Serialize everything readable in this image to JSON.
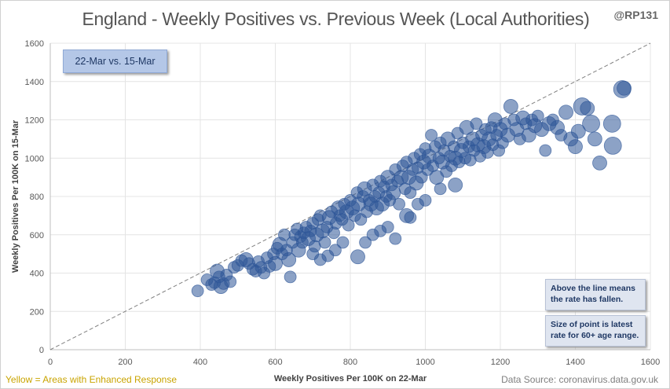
{
  "header": {
    "title": "England - Weekly Positives vs. Previous Week (Local Authorities)",
    "handle": "@RP131"
  },
  "date_label": "22-Mar vs. 15-Mar",
  "notes": {
    "line": "Above the line means the rate has fallen.",
    "size": "Size of point is latest rate for 60+ age range."
  },
  "footer": {
    "legend": "Yellow = Areas with Enhanced Response",
    "source": "Data Source: coronavirus.data.gov.uk"
  },
  "colors": {
    "point": "#2e5597",
    "diagonal": "#808080",
    "grid": "#e4e4e4",
    "enhanced": "#c9a400"
  },
  "chart_data": {
    "type": "scatter",
    "xlabel": "Weekly Positives Per 100K on 22-Mar",
    "ylabel": "Weekly Positives Per 100K on 15-Mar",
    "xlim": [
      0,
      1600
    ],
    "ylim": [
      0,
      1600
    ],
    "xticks": [
      0,
      200,
      400,
      600,
      800,
      1000,
      1200,
      1400,
      1600
    ],
    "yticks": [
      0,
      200,
      400,
      600,
      800,
      1000,
      1200,
      1400,
      1600
    ],
    "grid": true,
    "reference_line": "y = x",
    "size_meaning": "latest rate for 60+ age range",
    "points": [
      {
        "x": 393,
        "y": 307,
        "size": 1
      },
      {
        "x": 418,
        "y": 365,
        "size": 1
      },
      {
        "x": 430,
        "y": 340,
        "size": 1
      },
      {
        "x": 438,
        "y": 350,
        "size": 1
      },
      {
        "x": 445,
        "y": 410,
        "size": 2
      },
      {
        "x": 450,
        "y": 380,
        "size": 1
      },
      {
        "x": 455,
        "y": 330,
        "size": 2
      },
      {
        "x": 462,
        "y": 345,
        "size": 1
      },
      {
        "x": 470,
        "y": 390,
        "size": 1
      },
      {
        "x": 480,
        "y": 355,
        "size": 1
      },
      {
        "x": 490,
        "y": 430,
        "size": 1
      },
      {
        "x": 500,
        "y": 440,
        "size": 1
      },
      {
        "x": 510,
        "y": 465,
        "size": 1
      },
      {
        "x": 522,
        "y": 470,
        "size": 2
      },
      {
        "x": 530,
        "y": 450,
        "size": 1
      },
      {
        "x": 540,
        "y": 420,
        "size": 1
      },
      {
        "x": 548,
        "y": 410,
        "size": 1
      },
      {
        "x": 555,
        "y": 460,
        "size": 1
      },
      {
        "x": 562,
        "y": 430,
        "size": 1
      },
      {
        "x": 570,
        "y": 400,
        "size": 1
      },
      {
        "x": 578,
        "y": 480,
        "size": 1
      },
      {
        "x": 585,
        "y": 435,
        "size": 1
      },
      {
        "x": 595,
        "y": 500,
        "size": 1
      },
      {
        "x": 600,
        "y": 450,
        "size": 2
      },
      {
        "x": 605,
        "y": 530,
        "size": 1
      },
      {
        "x": 612,
        "y": 550,
        "size": 2
      },
      {
        "x": 618,
        "y": 500,
        "size": 1
      },
      {
        "x": 624,
        "y": 600,
        "size": 1
      },
      {
        "x": 630,
        "y": 520,
        "size": 1
      },
      {
        "x": 636,
        "y": 470,
        "size": 2
      },
      {
        "x": 640,
        "y": 380,
        "size": 1
      },
      {
        "x": 646,
        "y": 560,
        "size": 1
      },
      {
        "x": 652,
        "y": 600,
        "size": 1
      },
      {
        "x": 658,
        "y": 630,
        "size": 1
      },
      {
        "x": 662,
        "y": 520,
        "size": 2
      },
      {
        "x": 667,
        "y": 590,
        "size": 1
      },
      {
        "x": 672,
        "y": 560,
        "size": 1
      },
      {
        "x": 676,
        "y": 610,
        "size": 1
      },
      {
        "x": 682,
        "y": 640,
        "size": 1
      },
      {
        "x": 688,
        "y": 580,
        "size": 2
      },
      {
        "x": 694,
        "y": 620,
        "size": 1
      },
      {
        "x": 700,
        "y": 660,
        "size": 1
      },
      {
        "x": 705,
        "y": 540,
        "size": 1
      },
      {
        "x": 710,
        "y": 600,
        "size": 2
      },
      {
        "x": 714,
        "y": 680,
        "size": 1
      },
      {
        "x": 720,
        "y": 700,
        "size": 1
      },
      {
        "x": 726,
        "y": 620,
        "size": 2
      },
      {
        "x": 732,
        "y": 560,
        "size": 1
      },
      {
        "x": 738,
        "y": 640,
        "size": 1
      },
      {
        "x": 744,
        "y": 690,
        "size": 2
      },
      {
        "x": 750,
        "y": 720,
        "size": 1
      },
      {
        "x": 756,
        "y": 610,
        "size": 1
      },
      {
        "x": 762,
        "y": 660,
        "size": 1
      },
      {
        "x": 768,
        "y": 740,
        "size": 2
      },
      {
        "x": 772,
        "y": 700,
        "size": 1
      },
      {
        "x": 778,
        "y": 680,
        "size": 1
      },
      {
        "x": 784,
        "y": 760,
        "size": 1
      },
      {
        "x": 790,
        "y": 720,
        "size": 2
      },
      {
        "x": 795,
        "y": 650,
        "size": 1
      },
      {
        "x": 800,
        "y": 780,
        "size": 1
      },
      {
        "x": 806,
        "y": 740,
        "size": 2
      },
      {
        "x": 812,
        "y": 700,
        "size": 1
      },
      {
        "x": 818,
        "y": 820,
        "size": 1
      },
      {
        "x": 822,
        "y": 760,
        "size": 2
      },
      {
        "x": 828,
        "y": 680,
        "size": 1
      },
      {
        "x": 834,
        "y": 800,
        "size": 1
      },
      {
        "x": 838,
        "y": 840,
        "size": 2
      },
      {
        "x": 844,
        "y": 720,
        "size": 1
      },
      {
        "x": 850,
        "y": 780,
        "size": 1
      },
      {
        "x": 855,
        "y": 760,
        "size": 2
      },
      {
        "x": 860,
        "y": 860,
        "size": 1
      },
      {
        "x": 866,
        "y": 800,
        "size": 1
      },
      {
        "x": 870,
        "y": 740,
        "size": 2
      },
      {
        "x": 876,
        "y": 820,
        "size": 1
      },
      {
        "x": 880,
        "y": 880,
        "size": 1
      },
      {
        "x": 885,
        "y": 760,
        "size": 2
      },
      {
        "x": 890,
        "y": 850,
        "size": 1
      },
      {
        "x": 896,
        "y": 800,
        "size": 1
      },
      {
        "x": 900,
        "y": 900,
        "size": 2
      },
      {
        "x": 905,
        "y": 780,
        "size": 1
      },
      {
        "x": 910,
        "y": 860,
        "size": 1
      },
      {
        "x": 915,
        "y": 820,
        "size": 2
      },
      {
        "x": 920,
        "y": 940,
        "size": 1
      },
      {
        "x": 926,
        "y": 880,
        "size": 1
      },
      {
        "x": 930,
        "y": 760,
        "size": 1
      },
      {
        "x": 936,
        "y": 900,
        "size": 2
      },
      {
        "x": 940,
        "y": 960,
        "size": 1
      },
      {
        "x": 946,
        "y": 840,
        "size": 1
      },
      {
        "x": 950,
        "y": 980,
        "size": 1
      },
      {
        "x": 956,
        "y": 900,
        "size": 2
      },
      {
        "x": 960,
        "y": 820,
        "size": 1
      },
      {
        "x": 966,
        "y": 940,
        "size": 1
      },
      {
        "x": 970,
        "y": 1000,
        "size": 1
      },
      {
        "x": 976,
        "y": 870,
        "size": 2
      },
      {
        "x": 980,
        "y": 950,
        "size": 1
      },
      {
        "x": 986,
        "y": 1020,
        "size": 1
      },
      {
        "x": 990,
        "y": 900,
        "size": 1
      },
      {
        "x": 996,
        "y": 980,
        "size": 2
      },
      {
        "x": 1000,
        "y": 1050,
        "size": 1
      },
      {
        "x": 1006,
        "y": 940,
        "size": 1
      },
      {
        "x": 1010,
        "y": 1010,
        "size": 2
      },
      {
        "x": 1016,
        "y": 1120,
        "size": 1
      },
      {
        "x": 1020,
        "y": 960,
        "size": 1
      },
      {
        "x": 1026,
        "y": 1060,
        "size": 1
      },
      {
        "x": 1030,
        "y": 900,
        "size": 2
      },
      {
        "x": 1036,
        "y": 1000,
        "size": 1
      },
      {
        "x": 1040,
        "y": 1080,
        "size": 1
      },
      {
        "x": 1046,
        "y": 980,
        "size": 2
      },
      {
        "x": 1050,
        "y": 1040,
        "size": 1
      },
      {
        "x": 1056,
        "y": 930,
        "size": 1
      },
      {
        "x": 1060,
        "y": 1100,
        "size": 2
      },
      {
        "x": 1066,
        "y": 1010,
        "size": 1
      },
      {
        "x": 1070,
        "y": 960,
        "size": 1
      },
      {
        "x": 1076,
        "y": 1060,
        "size": 1
      },
      {
        "x": 1080,
        "y": 1000,
        "size": 2
      },
      {
        "x": 1086,
        "y": 1130,
        "size": 1
      },
      {
        "x": 1090,
        "y": 980,
        "size": 1
      },
      {
        "x": 1096,
        "y": 1040,
        "size": 2
      },
      {
        "x": 1100,
        "y": 1080,
        "size": 1
      },
      {
        "x": 1106,
        "y": 1000,
        "size": 1
      },
      {
        "x": 1110,
        "y": 1160,
        "size": 2
      },
      {
        "x": 1116,
        "y": 1060,
        "size": 1
      },
      {
        "x": 1120,
        "y": 990,
        "size": 1
      },
      {
        "x": 1126,
        "y": 1100,
        "size": 2
      },
      {
        "x": 1130,
        "y": 1040,
        "size": 1
      },
      {
        "x": 1136,
        "y": 1180,
        "size": 1
      },
      {
        "x": 1140,
        "y": 1070,
        "size": 2
      },
      {
        "x": 1146,
        "y": 1010,
        "size": 1
      },
      {
        "x": 1150,
        "y": 1120,
        "size": 1
      },
      {
        "x": 1156,
        "y": 1060,
        "size": 2
      },
      {
        "x": 1160,
        "y": 1150,
        "size": 1
      },
      {
        "x": 1166,
        "y": 1030,
        "size": 1
      },
      {
        "x": 1170,
        "y": 1100,
        "size": 2
      },
      {
        "x": 1176,
        "y": 1160,
        "size": 1
      },
      {
        "x": 1180,
        "y": 1070,
        "size": 1
      },
      {
        "x": 1186,
        "y": 1200,
        "size": 2
      },
      {
        "x": 1190,
        "y": 1120,
        "size": 1
      },
      {
        "x": 1196,
        "y": 1040,
        "size": 1
      },
      {
        "x": 1200,
        "y": 1150,
        "size": 2
      },
      {
        "x": 1206,
        "y": 1080,
        "size": 1
      },
      {
        "x": 1212,
        "y": 1180,
        "size": 1
      },
      {
        "x": 1220,
        "y": 1120,
        "size": 2
      },
      {
        "x": 1228,
        "y": 1270,
        "size": 2
      },
      {
        "x": 1236,
        "y": 1200,
        "size": 1
      },
      {
        "x": 1244,
        "y": 1150,
        "size": 2
      },
      {
        "x": 1252,
        "y": 1100,
        "size": 1
      },
      {
        "x": 1260,
        "y": 1210,
        "size": 2
      },
      {
        "x": 1268,
        "y": 1180,
        "size": 1
      },
      {
        "x": 1276,
        "y": 1120,
        "size": 2
      },
      {
        "x": 1284,
        "y": 1200,
        "size": 1
      },
      {
        "x": 1292,
        "y": 1170,
        "size": 2
      },
      {
        "x": 1300,
        "y": 1220,
        "size": 1
      },
      {
        "x": 1310,
        "y": 1150,
        "size": 2
      },
      {
        "x": 1320,
        "y": 1040,
        "size": 1
      },
      {
        "x": 1330,
        "y": 1180,
        "size": 2
      },
      {
        "x": 1340,
        "y": 1200,
        "size": 1
      },
      {
        "x": 1352,
        "y": 1160,
        "size": 2
      },
      {
        "x": 1362,
        "y": 1120,
        "size": 1
      },
      {
        "x": 1375,
        "y": 1240,
        "size": 2
      },
      {
        "x": 1388,
        "y": 1100,
        "size": 2
      },
      {
        "x": 1400,
        "y": 1060,
        "size": 2
      },
      {
        "x": 1408,
        "y": 1140,
        "size": 2
      },
      {
        "x": 1418,
        "y": 1270,
        "size": 3
      },
      {
        "x": 1432,
        "y": 1260,
        "size": 2
      },
      {
        "x": 1442,
        "y": 1180,
        "size": 3
      },
      {
        "x": 1452,
        "y": 1100,
        "size": 2
      },
      {
        "x": 1465,
        "y": 975,
        "size": 2
      },
      {
        "x": 1498,
        "y": 1180,
        "size": 3
      },
      {
        "x": 1500,
        "y": 1065,
        "size": 3
      },
      {
        "x": 1525,
        "y": 1360,
        "size": 3
      },
      {
        "x": 1530,
        "y": 1365,
        "size": 2
      },
      {
        "x": 820,
        "y": 485,
        "size": 2
      },
      {
        "x": 740,
        "y": 490,
        "size": 1
      },
      {
        "x": 760,
        "y": 520,
        "size": 1
      },
      {
        "x": 700,
        "y": 500,
        "size": 1
      },
      {
        "x": 860,
        "y": 600,
        "size": 1
      },
      {
        "x": 900,
        "y": 640,
        "size": 1
      },
      {
        "x": 950,
        "y": 700,
        "size": 2
      },
      {
        "x": 1000,
        "y": 780,
        "size": 1
      },
      {
        "x": 880,
        "y": 620,
        "size": 1
      },
      {
        "x": 920,
        "y": 580,
        "size": 1
      },
      {
        "x": 980,
        "y": 760,
        "size": 1
      },
      {
        "x": 780,
        "y": 560,
        "size": 1
      },
      {
        "x": 720,
        "y": 470,
        "size": 1
      },
      {
        "x": 840,
        "y": 560,
        "size": 1
      },
      {
        "x": 960,
        "y": 690,
        "size": 1
      },
      {
        "x": 1040,
        "y": 840,
        "size": 1
      },
      {
        "x": 1080,
        "y": 860,
        "size": 2
      }
    ]
  }
}
